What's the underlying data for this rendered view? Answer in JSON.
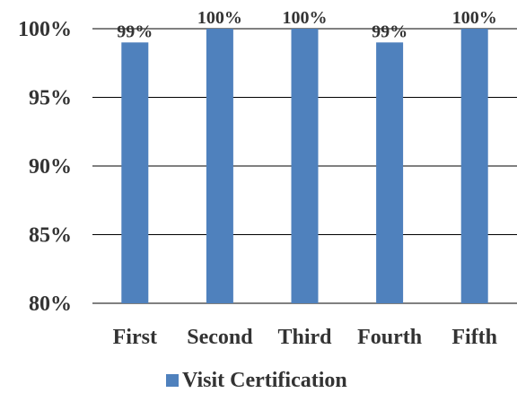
{
  "chart_data": {
    "type": "bar",
    "categories": [
      "First",
      "Second",
      "Third",
      "Fourth",
      "Fifth"
    ],
    "series": [
      {
        "name": "Visit Certification",
        "values": [
          99,
          100,
          100,
          99,
          100
        ]
      }
    ],
    "data_labels": [
      "99%",
      "100%",
      "100%",
      "99%",
      "100%"
    ],
    "ylim": [
      80,
      100
    ],
    "yticks": [
      80,
      85,
      90,
      95,
      100
    ],
    "ytick_labels": [
      "80%",
      "85%",
      "90%",
      "95%",
      "100%"
    ],
    "grid": true,
    "legend_position": "bottom",
    "colors": {
      "bar": "#4f81bd",
      "grid": "#000000",
      "text": "#333333"
    }
  }
}
